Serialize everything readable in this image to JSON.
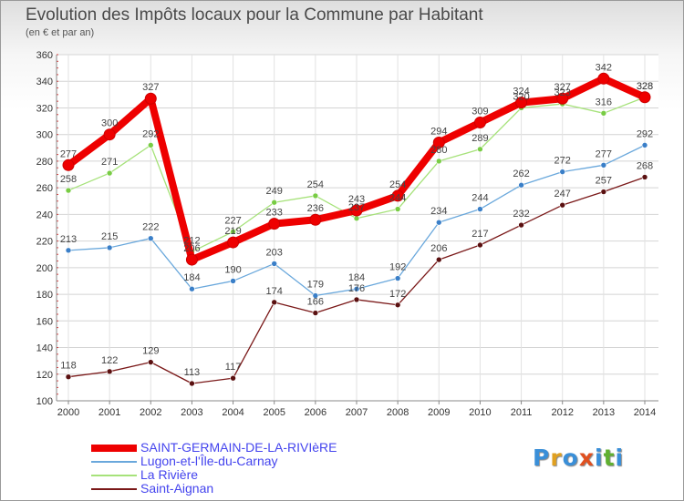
{
  "title": "Evolution des Impôts locaux pour la Commune par Habitant",
  "subtitle": "(en € et par an)",
  "logo": [
    "P",
    "r",
    "o",
    "x",
    "i",
    "t",
    "i"
  ],
  "logo_colors": [
    "#3a8fd8",
    "#e0a020",
    "#3a8fd8",
    "#e05020",
    "#3a8fd8",
    "#60b030",
    "#3a8fd8"
  ],
  "chart_data": {
    "type": "line",
    "title": "Evolution des Impôts locaux pour la Commune par Habitant",
    "ylabel": "(en € et par an)",
    "xlabel": "",
    "ylim": [
      100,
      360
    ],
    "yticks": [
      100,
      120,
      140,
      160,
      180,
      200,
      220,
      240,
      260,
      280,
      300,
      320,
      340,
      360
    ],
    "x": [
      2000,
      2001,
      2002,
      2003,
      2004,
      2005,
      2006,
      2007,
      2008,
      2009,
      2010,
      2011,
      2012,
      2013,
      2014
    ],
    "series": [
      {
        "name": "Saint-Aignan",
        "color": "#7a1818",
        "marker": "#5a1010",
        "values": [
          118,
          122,
          129,
          113,
          117,
          174,
          166,
          176,
          172,
          206,
          217,
          232,
          247,
          257,
          268
        ]
      },
      {
        "name": "Lugon-et-l'Île-du-Carnay",
        "color": "#6aa8dc",
        "marker": "#3a7fc8",
        "values": [
          213,
          215,
          222,
          184,
          190,
          203,
          179,
          184,
          192,
          234,
          244,
          262,
          272,
          277,
          292
        ]
      },
      {
        "name": "La Rivière",
        "color": "#a6e27a",
        "marker": "#78cc44",
        "values": [
          258,
          271,
          292,
          212,
          227,
          249,
          254,
          237,
          244,
          280,
          289,
          320,
          323,
          316,
          328
        ]
      },
      {
        "name": "SAINT-GERMAIN-DE-LA-RIVIèRE",
        "color": "#ee0000",
        "marker": "#ee0000",
        "values": [
          277,
          300,
          327,
          206,
          219,
          233,
          236,
          243,
          254,
          294,
          309,
          324,
          327,
          342,
          328
        ]
      }
    ],
    "legend_order": [
      "SAINT-GERMAIN-DE-LA-RIVIèRE",
      "Lugon-et-l'Île-du-Carnay",
      "La Rivière",
      "Saint-Aignan"
    ],
    "legend_position": "bottom-left"
  }
}
